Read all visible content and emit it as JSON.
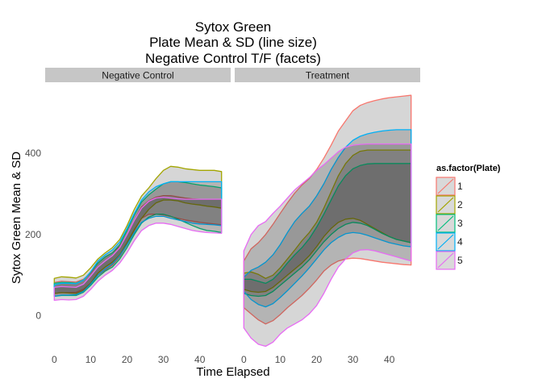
{
  "chart_data": {
    "type": "area",
    "title_lines": [
      "Sytox Green",
      "Plate Mean & SD (line size)",
      "Negative Control T/F (facets)"
    ],
    "xlabel": "Time Elapsed",
    "ylabel": "Sytox Green Mean & SD",
    "xlim": [
      -2.5,
      48.5
    ],
    "ylim": [
      -80,
      575
    ],
    "x_ticks": [
      0,
      10,
      20,
      30,
      40
    ],
    "y_ticks": [
      0,
      200,
      400
    ],
    "legend": {
      "title": "as.factor(Plate)",
      "position": "right",
      "items": [
        "1",
        "2",
        "3",
        "4",
        "5"
      ]
    },
    "colors": {
      "1": "#F8766D",
      "2": "#A3A500",
      "3": "#00BF7D",
      "4": "#00B0F6",
      "5": "#E76BF3"
    },
    "grid": false,
    "band_fill": "#1a1a1a",
    "band_opacity": 0.18,
    "x": [
      0,
      2,
      4,
      6,
      8,
      10,
      12,
      14,
      16,
      18,
      20,
      22,
      24,
      26,
      28,
      30,
      32,
      34,
      36,
      38,
      40,
      42,
      44,
      46
    ],
    "facets": [
      {
        "label": "Negative Control",
        "series": [
          {
            "name": "1",
            "upper": [
              82,
              85,
              84,
              83,
              90,
              105,
              130,
              145,
              155,
              170,
              200,
              235,
              268,
              283,
              292,
              296,
              296,
              293,
              290,
              288,
              287,
              287,
              287,
              287
            ],
            "lower": [
              55,
              57,
              57,
              58,
              65,
              80,
              100,
              112,
              125,
              145,
              175,
              210,
              240,
              250,
              250,
              248,
              244,
              240,
              236,
              233,
              230,
              228,
              226,
              224
            ]
          },
          {
            "name": "2",
            "upper": [
              92,
              96,
              95,
              93,
              100,
              118,
              140,
              155,
              168,
              188,
              222,
              262,
              295,
              315,
              338,
              358,
              368,
              366,
              362,
              360,
              358,
              358,
              358,
              355
            ],
            "lower": [
              55,
              57,
              56,
              55,
              62,
              80,
              105,
              120,
              132,
              150,
              180,
              212,
              240,
              262,
              278,
              285,
              285,
              283,
              278,
              275,
              273,
              270,
              268,
              265
            ]
          },
          {
            "name": "3",
            "upper": [
              80,
              82,
              82,
              80,
              88,
              108,
              130,
              145,
              155,
              175,
              210,
              248,
              280,
              298,
              312,
              325,
              330,
              330,
              328,
              325,
              322,
              320,
              318,
              315
            ],
            "lower": [
              48,
              50,
              50,
              50,
              58,
              75,
              95,
              110,
              120,
              140,
              168,
              200,
              228,
              243,
              250,
              250,
              245,
              238,
              230,
              222,
              215,
              210,
              208,
              205
            ]
          },
          {
            "name": "4",
            "upper": [
              76,
              80,
              80,
              79,
              88,
              108,
              135,
              150,
              162,
              182,
              215,
              252,
              285,
              305,
              318,
              325,
              330,
              330,
              330,
              330,
              330,
              330,
              330,
              330
            ],
            "lower": [
              48,
              51,
              51,
              52,
              60,
              78,
              100,
              115,
              128,
              148,
              175,
              205,
              230,
              240,
              245,
              245,
              240,
              236,
              232,
              228,
              226,
              225,
              224,
              222
            ]
          },
          {
            "name": "5",
            "upper": [
              70,
              72,
              71,
              70,
              78,
              98,
              120,
              135,
              148,
              168,
              200,
              235,
              265,
              282,
              290,
              292,
              290,
              288,
              287,
              287,
              287,
              287,
              287,
              287
            ],
            "lower": [
              38,
              40,
              39,
              40,
              48,
              65,
              85,
              100,
              112,
              130,
              155,
              185,
              210,
              222,
              228,
              228,
              225,
              220,
              215,
              210,
              207,
              205,
              204,
              203
            ]
          }
        ]
      },
      {
        "label": "Treatment",
        "series": [
          {
            "name": "1",
            "upper": [
              135,
              165,
              180,
              200,
              225,
              252,
              278,
              302,
              322,
              338,
              360,
              388,
              420,
              455,
              480,
              505,
              518,
              525,
              530,
              534,
              537,
              539,
              541,
              543
            ],
            "lower": [
              20,
              5,
              -10,
              -20,
              -12,
              3,
              20,
              35,
              50,
              68,
              88,
              110,
              125,
              135,
              140,
              142,
              141,
              138,
              135,
              132,
              130,
              128,
              126,
              125
            ]
          },
          {
            "name": "2",
            "upper": [
              105,
              108,
              102,
              92,
              100,
              118,
              140,
              162,
              185,
              205,
              230,
              265,
              305,
              345,
              375,
              395,
              405,
              408,
              408,
              408,
              408,
              408,
              408,
              408
            ],
            "lower": [
              65,
              60,
              58,
              60,
              70,
              85,
              100,
              115,
              130,
              148,
              170,
              195,
              215,
              230,
              238,
              240,
              235,
              225,
              215,
              205,
              195,
              188,
              184,
              180
            ]
          },
          {
            "name": "3",
            "upper": [
              90,
              90,
              85,
              80,
              90,
              108,
              130,
              150,
              168,
              190,
              218,
              250,
              285,
              320,
              345,
              362,
              370,
              374,
              375,
              375,
              375,
              375,
              375,
              375
            ],
            "lower": [
              55,
              50,
              48,
              50,
              60,
              75,
              90,
              105,
              120,
              138,
              160,
              182,
              200,
              215,
              225,
              230,
              228,
              222,
              213,
              203,
              195,
              188,
              184,
              180
            ]
          },
          {
            "name": "4",
            "upper": [
              95,
              112,
              120,
              132,
              150,
              175,
              205,
              232,
              252,
              270,
              295,
              325,
              360,
              390,
              415,
              432,
              442,
              448,
              452,
              455,
              457,
              458,
              458,
              458
            ],
            "lower": [
              60,
              40,
              28,
              22,
              30,
              45,
              62,
              80,
              98,
              118,
              140,
              162,
              180,
              193,
              202,
              205,
              203,
              198,
              192,
              186,
              180,
              176,
              172,
              170
            ]
          },
          {
            "name": "5",
            "upper": [
              160,
              200,
              222,
              232,
              252,
              270,
              290,
              310,
              325,
              340,
              358,
              372,
              388,
              404,
              415,
              420,
              422,
              423,
              423,
              423,
              423,
              423,
              423,
              423
            ],
            "lower": [
              -30,
              -55,
              -70,
              -75,
              -65,
              -45,
              -30,
              -20,
              -10,
              5,
              25,
              55,
              90,
              120,
              140,
              155,
              162,
              163,
              160,
              155,
              150,
              145,
              140,
              135
            ]
          }
        ]
      }
    ]
  }
}
